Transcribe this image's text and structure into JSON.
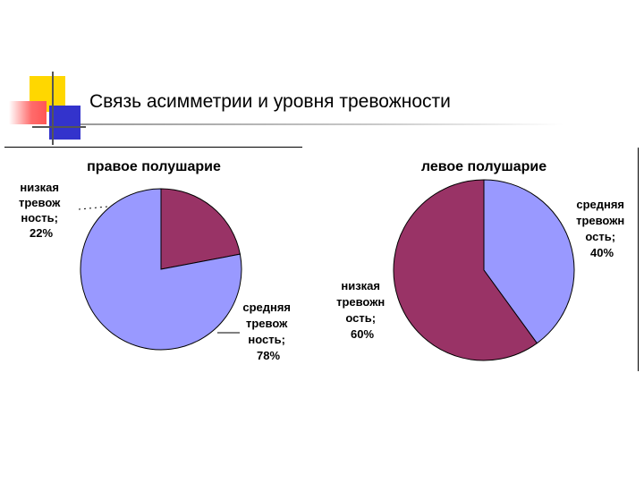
{
  "slide": {
    "title": "Связь асимметрии и уровня тревожности"
  },
  "colors": {
    "low_anxiety": "#993366",
    "medium_anxiety": "#9999FF",
    "deco_yellow": "#FFD700",
    "deco_red": "#FF6B6B",
    "deco_blue": "#3333CC",
    "deco_gray": "#555555"
  },
  "chart_data": [
    {
      "type": "pie",
      "title": "правое полушарие",
      "slices": [
        {
          "label_lines": [
            "низкая",
            "тревож",
            "ность;",
            "22%"
          ],
          "value": 22,
          "color": "#993366"
        },
        {
          "label_lines": [
            "средняя",
            "тревож",
            "ность;",
            "78%"
          ],
          "value": 78,
          "color": "#9999FF"
        }
      ]
    },
    {
      "type": "pie",
      "title": "левое полушарие",
      "slices": [
        {
          "label_lines": [
            "средняя",
            "тревожн",
            "ость;",
            "40%"
          ],
          "value": 40,
          "color": "#9999FF"
        },
        {
          "label_lines": [
            "низкая",
            "тревожн",
            "ость;",
            "60%"
          ],
          "value": 60,
          "color": "#993366"
        }
      ]
    }
  ]
}
